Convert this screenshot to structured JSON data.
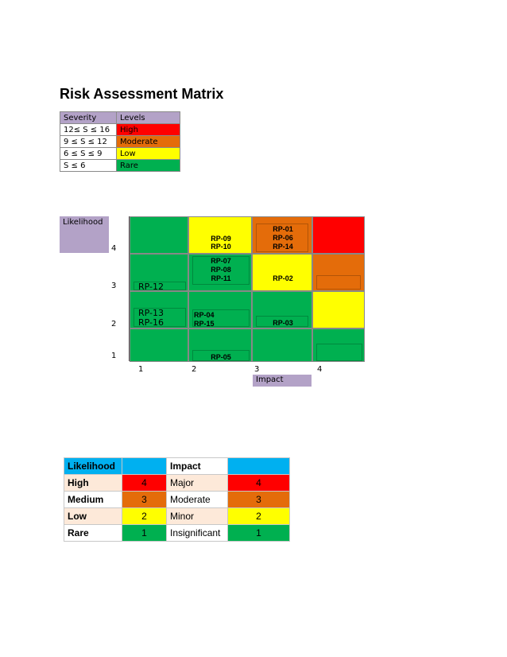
{
  "title": "Risk Assessment Matrix",
  "severity_table": {
    "headers": [
      "Severity",
      "Levels"
    ],
    "rows": [
      {
        "range": "12≤ S ≤ 16",
        "level": "High",
        "color": "#ff0000"
      },
      {
        "range": "9 ≤ S ≤ 12",
        "level": "Moderate",
        "color": "#e46c0a"
      },
      {
        "range": "6 ≤ S ≤ 9",
        "level": "Low",
        "color": "#ffff00"
      },
      {
        "range": "S ≤ 6",
        "level": "Rare",
        "color": "#00b050"
      }
    ]
  },
  "matrix": {
    "likelihood_label": "Likelihood",
    "impact_label": "Impact",
    "y_ticks": [
      "4",
      "3",
      "2",
      "1"
    ],
    "x_ticks": [
      "1",
      "2",
      "3",
      "4"
    ],
    "cells": {
      "r4c2": [
        "RP-09",
        "RP-10"
      ],
      "r4c3": [
        "RP-01",
        "RP-06",
        "RP-14"
      ],
      "r3c1": [
        "RP-12"
      ],
      "r3c2": [
        "RP-07",
        "RP-08",
        "RP-11"
      ],
      "r3c3": [
        "RP-02"
      ],
      "r2c1": [
        "RP-13",
        "RP-16"
      ],
      "r2c2": [
        "RP-04",
        "RP-15"
      ],
      "r2c3": [
        "RP-03"
      ],
      "r1c2": [
        "RP-05"
      ]
    }
  },
  "scale_table": {
    "headers": {
      "likelihood": "Likelihood",
      "impact": "Impact"
    },
    "rows": [
      {
        "likelihood": "High",
        "likelihood_value": "4",
        "impact": "Major",
        "impact_value": "4",
        "color": "#ff0000"
      },
      {
        "likelihood": "Medium",
        "likelihood_value": "3",
        "impact": "Moderate",
        "impact_value": "3",
        "color": "#e46c0a"
      },
      {
        "likelihood": "Low",
        "likelihood_value": "2",
        "impact": "Minor",
        "impact_value": "2",
        "color": "#ffff00"
      },
      {
        "likelihood": "Rare",
        "likelihood_value": "1",
        "impact": "Insignificant",
        "impact_value": "1",
        "color": "#00b050"
      }
    ]
  }
}
